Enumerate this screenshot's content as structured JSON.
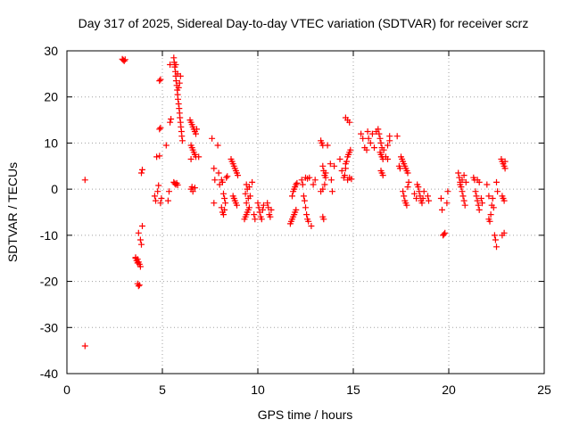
{
  "chart_data": {
    "type": "scatter",
    "title": "Day 317 of 2025, Sidereal Day-to-day VTEC variation (SDTVAR) for receiver scrz",
    "xlabel": "GPS time / hours",
    "ylabel": "SDTVAR / TECUs",
    "xlim": [
      0,
      25
    ],
    "ylim": [
      -40,
      30
    ],
    "xticks": [
      "0",
      "5",
      "10",
      "15",
      "20",
      "25"
    ],
    "yticks": [
      "30",
      "20",
      "10",
      "0",
      "-10",
      "-20",
      "-30",
      "-40"
    ],
    "grid": true,
    "marker": "plus",
    "series": [
      {
        "name": "SDTVAR",
        "color": "#ff0000",
        "points": [
          [
            0.95,
            2.0
          ],
          [
            0.95,
            -34.0
          ],
          [
            2.9,
            28.2
          ],
          [
            2.95,
            28.0
          ],
          [
            3.0,
            27.8
          ],
          [
            3.05,
            28.1
          ],
          [
            3.6,
            -15.0
          ],
          [
            3.65,
            -15.5
          ],
          [
            3.7,
            -16.0
          ],
          [
            3.75,
            -15.8
          ],
          [
            3.8,
            -16.3
          ],
          [
            3.85,
            -16.8
          ],
          [
            3.6,
            -14.8
          ],
          [
            3.7,
            -15.2
          ],
          [
            3.7,
            -20.5
          ],
          [
            3.75,
            -21.0
          ],
          [
            3.8,
            -20.8
          ],
          [
            3.75,
            -9.5
          ],
          [
            3.85,
            -11.0
          ],
          [
            3.9,
            -12.0
          ],
          [
            3.95,
            -8.0
          ],
          [
            3.9,
            3.5
          ],
          [
            3.95,
            4.2
          ],
          [
            4.6,
            -1.5
          ],
          [
            4.65,
            -2.5
          ],
          [
            4.7,
            7.0
          ],
          [
            4.75,
            -0.5
          ],
          [
            4.8,
            0.8
          ],
          [
            4.85,
            7.2
          ],
          [
            4.9,
            -3.0
          ],
          [
            4.95,
            -2.0
          ],
          [
            4.85,
            13.0
          ],
          [
            4.9,
            13.3
          ],
          [
            4.85,
            23.5
          ],
          [
            4.9,
            23.8
          ],
          [
            5.2,
            9.5
          ],
          [
            5.3,
            -2.5
          ],
          [
            5.35,
            -0.5
          ],
          [
            5.4,
            14.5
          ],
          [
            5.45,
            15.2
          ],
          [
            5.4,
            27.0
          ],
          [
            5.6,
            28.5
          ],
          [
            5.62,
            27.5
          ],
          [
            5.65,
            26.5
          ],
          [
            5.68,
            25.5
          ],
          [
            5.7,
            24.5
          ],
          [
            5.72,
            23.5
          ],
          [
            5.75,
            22.5
          ],
          [
            5.78,
            21.5
          ],
          [
            5.8,
            20.5
          ],
          [
            5.82,
            19.5
          ],
          [
            5.85,
            18.5
          ],
          [
            5.88,
            17.5
          ],
          [
            5.9,
            16.5
          ],
          [
            5.92,
            15.5
          ],
          [
            5.95,
            14.5
          ],
          [
            5.97,
            13.5
          ],
          [
            6.0,
            12.5
          ],
          [
            6.02,
            11.5
          ],
          [
            6.05,
            10.5
          ],
          [
            5.7,
            27.0
          ],
          [
            5.8,
            25.0
          ],
          [
            5.9,
            23.0
          ],
          [
            5.95,
            24.5
          ],
          [
            5.85,
            22.0
          ],
          [
            5.6,
            1.5
          ],
          [
            5.65,
            1.2
          ],
          [
            5.7,
            1.0
          ],
          [
            5.75,
            1.3
          ],
          [
            5.8,
            0.9
          ],
          [
            6.45,
            15.0
          ],
          [
            6.5,
            14.5
          ],
          [
            6.55,
            14.0
          ],
          [
            6.6,
            13.5
          ],
          [
            6.65,
            13.0
          ],
          [
            6.7,
            12.5
          ],
          [
            6.75,
            12.0
          ],
          [
            6.8,
            13.0
          ],
          [
            6.5,
            9.5
          ],
          [
            6.55,
            9.0
          ],
          [
            6.6,
            8.5
          ],
          [
            6.65,
            8.0
          ],
          [
            6.7,
            7.5
          ],
          [
            6.75,
            7.0
          ],
          [
            6.5,
            6.5
          ],
          [
            6.5,
            0.0
          ],
          [
            6.55,
            0.5
          ],
          [
            6.6,
            -0.5
          ],
          [
            6.7,
            0.3
          ],
          [
            6.9,
            7.0
          ],
          [
            7.6,
            11.0
          ],
          [
            7.7,
            4.5
          ],
          [
            7.75,
            2.0
          ],
          [
            7.7,
            -3.0
          ],
          [
            7.9,
            9.5
          ],
          [
            7.95,
            3.5
          ],
          [
            8.0,
            1.0
          ],
          [
            8.1,
            2.0
          ],
          [
            8.15,
            1.5
          ],
          [
            8.2,
            -1.0
          ],
          [
            8.25,
            -2.0
          ],
          [
            8.3,
            -3.0
          ],
          [
            8.35,
            2.5
          ],
          [
            8.4,
            2.8
          ],
          [
            8.1,
            -4.0
          ],
          [
            8.15,
            -5.0
          ],
          [
            8.2,
            -5.5
          ],
          [
            8.25,
            -4.5
          ],
          [
            8.6,
            6.5
          ],
          [
            8.65,
            6.0
          ],
          [
            8.7,
            5.5
          ],
          [
            8.75,
            5.0
          ],
          [
            8.8,
            4.5
          ],
          [
            8.85,
            4.0
          ],
          [
            8.9,
            3.5
          ],
          [
            8.95,
            3.0
          ],
          [
            8.7,
            -1.5
          ],
          [
            8.75,
            -2.0
          ],
          [
            8.8,
            -2.5
          ],
          [
            8.85,
            -3.0
          ],
          [
            8.9,
            -3.5
          ],
          [
            9.3,
            -6.5
          ],
          [
            9.35,
            -6.0
          ],
          [
            9.4,
            -5.5
          ],
          [
            9.45,
            -5.0
          ],
          [
            9.5,
            -4.5
          ],
          [
            9.55,
            -4.0
          ],
          [
            9.4,
            -3.0
          ],
          [
            9.5,
            -2.0
          ],
          [
            9.35,
            -1.0
          ],
          [
            9.45,
            0.0
          ],
          [
            9.55,
            0.5
          ],
          [
            9.4,
            1.0
          ],
          [
            9.6,
            -1.5
          ],
          [
            9.7,
            1.5
          ],
          [
            9.8,
            -5.5
          ],
          [
            9.85,
            -6.5
          ],
          [
            10.0,
            -3.0
          ],
          [
            10.05,
            -4.0
          ],
          [
            10.1,
            -5.0
          ],
          [
            10.15,
            -6.0
          ],
          [
            10.2,
            -6.5
          ],
          [
            10.25,
            -4.5
          ],
          [
            10.3,
            -3.5
          ],
          [
            10.5,
            -3.0
          ],
          [
            10.55,
            -4.0
          ],
          [
            10.6,
            -5.5
          ],
          [
            10.65,
            -6.0
          ],
          [
            10.7,
            -4.5
          ],
          [
            11.7,
            -7.5
          ],
          [
            11.75,
            -7.0
          ],
          [
            11.8,
            -6.5
          ],
          [
            11.85,
            -6.0
          ],
          [
            11.9,
            -5.5
          ],
          [
            11.95,
            -5.0
          ],
          [
            12.0,
            -4.5
          ],
          [
            11.8,
            -1.5
          ],
          [
            11.85,
            -0.5
          ],
          [
            11.9,
            0.0
          ],
          [
            11.95,
            0.5
          ],
          [
            12.0,
            1.0
          ],
          [
            12.05,
            1.3
          ],
          [
            12.3,
            2.0
          ],
          [
            12.35,
            1.0
          ],
          [
            12.4,
            -1.5
          ],
          [
            12.45,
            -2.5
          ],
          [
            12.5,
            -4.0
          ],
          [
            12.55,
            -5.5
          ],
          [
            12.6,
            -6.5
          ],
          [
            12.65,
            -7.0
          ],
          [
            12.5,
            2.5
          ],
          [
            12.6,
            2.3
          ],
          [
            12.7,
            2.5
          ],
          [
            12.8,
            -8.0
          ],
          [
            12.9,
            1.0
          ],
          [
            13.0,
            2.0
          ],
          [
            13.3,
            10.5
          ],
          [
            13.35,
            10.0
          ],
          [
            13.4,
            9.5
          ],
          [
            13.4,
            5.0
          ],
          [
            13.45,
            4.0
          ],
          [
            13.5,
            3.0
          ],
          [
            13.55,
            2.5
          ],
          [
            13.3,
            -0.5
          ],
          [
            13.4,
            0.0
          ],
          [
            13.5,
            1.0
          ],
          [
            13.4,
            -6.0
          ],
          [
            13.45,
            -6.5
          ],
          [
            13.55,
            3.5
          ],
          [
            13.65,
            9.5
          ],
          [
            13.8,
            5.5
          ],
          [
            13.85,
            2.0
          ],
          [
            13.9,
            -0.5
          ],
          [
            14.0,
            5.0
          ],
          [
            14.3,
            6.5
          ],
          [
            14.4,
            4.0
          ],
          [
            14.5,
            2.5
          ],
          [
            14.55,
            3.0
          ],
          [
            14.6,
            5.5
          ],
          [
            14.65,
            6.0
          ],
          [
            14.7,
            7.0
          ],
          [
            14.75,
            7.5
          ],
          [
            14.8,
            8.0
          ],
          [
            14.85,
            8.5
          ],
          [
            14.6,
            4.5
          ],
          [
            14.7,
            2.0
          ],
          [
            14.8,
            2.5
          ],
          [
            14.9,
            2.2
          ],
          [
            14.6,
            15.5
          ],
          [
            14.7,
            15.0
          ],
          [
            14.8,
            14.5
          ],
          [
            15.4,
            12.0
          ],
          [
            15.5,
            11.0
          ],
          [
            15.6,
            9.0
          ],
          [
            15.7,
            8.5
          ],
          [
            15.75,
            12.5
          ],
          [
            15.8,
            11.0
          ],
          [
            15.9,
            10.0
          ],
          [
            16.0,
            12.0
          ],
          [
            16.1,
            9.0
          ],
          [
            16.2,
            12.5
          ],
          [
            16.3,
            13.0
          ],
          [
            16.35,
            12.0
          ],
          [
            16.4,
            11.0
          ],
          [
            16.45,
            10.0
          ],
          [
            16.5,
            9.0
          ],
          [
            16.4,
            8.0
          ],
          [
            16.45,
            7.5
          ],
          [
            16.5,
            7.0
          ],
          [
            16.55,
            6.5
          ],
          [
            16.6,
            8.5
          ],
          [
            16.7,
            7.0
          ],
          [
            16.8,
            9.5
          ],
          [
            16.9,
            10.5
          ],
          [
            16.45,
            4.0
          ],
          [
            16.5,
            3.5
          ],
          [
            16.55,
            3.0
          ],
          [
            16.8,
            6.5
          ],
          [
            16.9,
            11.5
          ],
          [
            17.3,
            11.5
          ],
          [
            17.4,
            5.0
          ],
          [
            17.45,
            4.5
          ],
          [
            17.5,
            7.0
          ],
          [
            17.55,
            6.5
          ],
          [
            17.6,
            6.0
          ],
          [
            17.65,
            5.5
          ],
          [
            17.7,
            5.0
          ],
          [
            17.75,
            4.5
          ],
          [
            17.8,
            4.0
          ],
          [
            17.85,
            3.5
          ],
          [
            17.6,
            -0.5
          ],
          [
            17.65,
            -1.5
          ],
          [
            17.7,
            -2.5
          ],
          [
            17.75,
            -3.0
          ],
          [
            17.8,
            -3.5
          ],
          [
            17.85,
            0.5
          ],
          [
            17.9,
            1.5
          ],
          [
            18.2,
            -1.0
          ],
          [
            18.3,
            -2.0
          ],
          [
            18.35,
            1.0
          ],
          [
            18.4,
            0.5
          ],
          [
            18.45,
            -0.5
          ],
          [
            18.5,
            -1.5
          ],
          [
            18.55,
            -2.5
          ],
          [
            18.6,
            -3.0
          ],
          [
            18.65,
            -2.0
          ],
          [
            18.7,
            -0.5
          ],
          [
            18.9,
            -1.5
          ],
          [
            18.95,
            -2.5
          ],
          [
            19.6,
            -2.0
          ],
          [
            19.65,
            -4.5
          ],
          [
            19.7,
            -10.0
          ],
          [
            19.75,
            -9.8
          ],
          [
            19.8,
            -9.5
          ],
          [
            19.9,
            -3.0
          ],
          [
            19.95,
            -0.5
          ],
          [
            20.5,
            3.5
          ],
          [
            20.55,
            2.5
          ],
          [
            20.6,
            1.5
          ],
          [
            20.65,
            0.5
          ],
          [
            20.7,
            -0.5
          ],
          [
            20.75,
            -1.5
          ],
          [
            20.8,
            -2.5
          ],
          [
            20.85,
            -3.5
          ],
          [
            20.6,
            1.0
          ],
          [
            20.7,
            2.0
          ],
          [
            20.8,
            3.0
          ],
          [
            20.9,
            1.5
          ],
          [
            21.3,
            2.5
          ],
          [
            21.35,
            2.0
          ],
          [
            21.4,
            -0.5
          ],
          [
            21.45,
            -1.5
          ],
          [
            21.5,
            -2.5
          ],
          [
            21.55,
            -3.5
          ],
          [
            21.6,
            -4.5
          ],
          [
            21.5,
            2.0
          ],
          [
            21.6,
            1.5
          ],
          [
            21.7,
            -2.0
          ],
          [
            21.75,
            -3.0
          ],
          [
            22.0,
            1.0
          ],
          [
            22.1,
            -1.5
          ],
          [
            22.1,
            -6.5
          ],
          [
            22.15,
            -7.0
          ],
          [
            22.2,
            -5.5
          ],
          [
            22.25,
            -3.5
          ],
          [
            22.3,
            -2.0
          ],
          [
            22.35,
            -4.0
          ],
          [
            22.4,
            -10.0
          ],
          [
            22.45,
            -11.0
          ],
          [
            22.5,
            -12.5
          ],
          [
            22.5,
            1.5
          ],
          [
            22.55,
            -0.5
          ],
          [
            22.75,
            6.5
          ],
          [
            22.8,
            6.0
          ],
          [
            22.85,
            5.5
          ],
          [
            22.9,
            5.0
          ],
          [
            22.95,
            4.5
          ],
          [
            22.8,
            -1.5
          ],
          [
            22.85,
            -2.0
          ],
          [
            22.9,
            -2.5
          ],
          [
            22.8,
            -10.0
          ],
          [
            22.9,
            -9.5
          ],
          [
            22.95,
            6.0
          ]
        ]
      }
    ]
  }
}
